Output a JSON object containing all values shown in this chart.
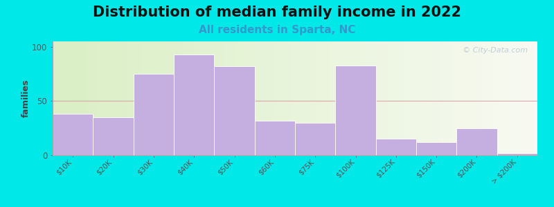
{
  "title": "Distribution of median family income in 2022",
  "subtitle": "All residents in Sparta, NC",
  "ylabel": "families",
  "categories": [
    "$10K",
    "$20K",
    "$30K",
    "$40K",
    "$50K",
    "$60K",
    "$75K",
    "$100K",
    "$125K",
    "$150K",
    "$200K",
    "> $200K"
  ],
  "values": [
    38,
    35,
    75,
    93,
    82,
    32,
    30,
    83,
    15,
    12,
    25,
    2
  ],
  "bar_color": "#c5aee0",
  "bar_edge_color": "#ffffff",
  "ylim": [
    0,
    105
  ],
  "yticks": [
    0,
    50,
    100
  ],
  "bg_outer": "#00e8e8",
  "bg_plot_left": "#daefc5",
  "bg_plot_right": "#f5f8f0",
  "grid_color": "#d8a8a8",
  "title_fontsize": 15,
  "subtitle_fontsize": 11,
  "subtitle_color": "#3399cc",
  "ylabel_fontsize": 9,
  "tick_label_fontsize": 7.5,
  "watermark_text": "© City-Data.com",
  "watermark_color": "#b8c8d4"
}
